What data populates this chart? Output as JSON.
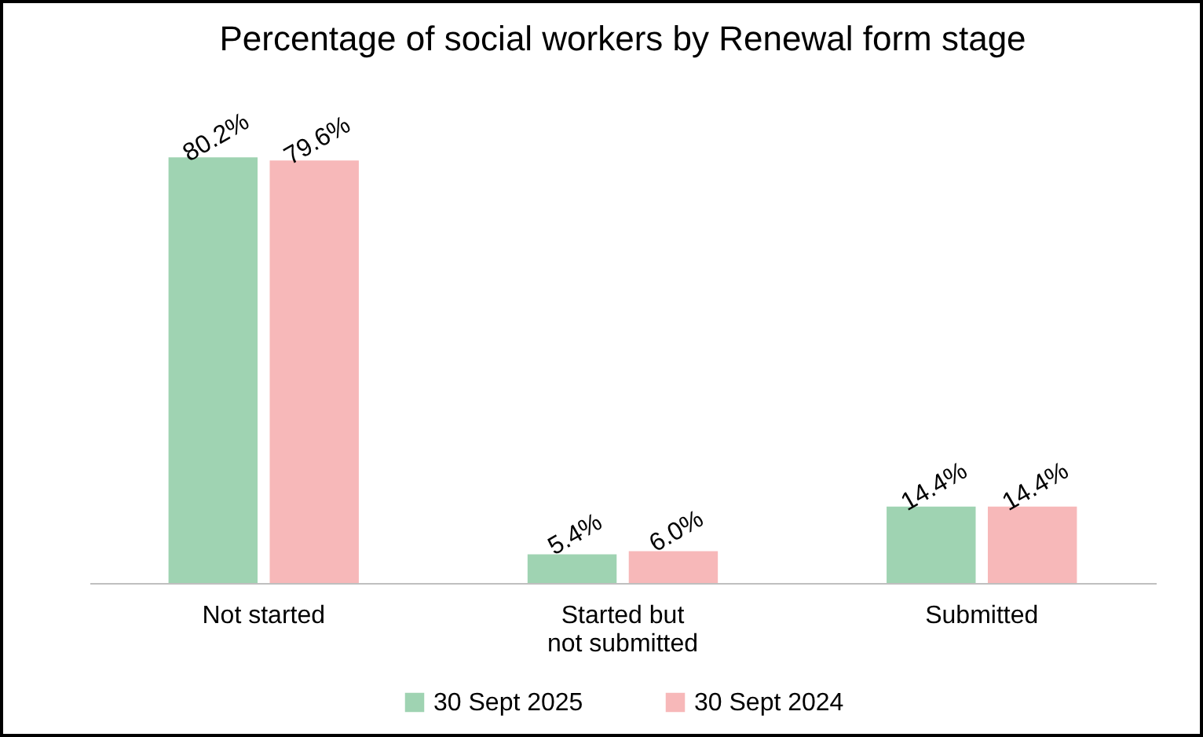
{
  "chart_data": {
    "type": "bar",
    "title": "Percentage of social workers by Renewal form stage",
    "categories": [
      "Not started",
      "Started but not submitted",
      "Submitted"
    ],
    "series": [
      {
        "name": "30 Sept 2025",
        "color": "#9fd3b2",
        "values": [
          80.2,
          5.4,
          14.4
        ],
        "value_labels": [
          "80.2%",
          "5.4%",
          "14.4%"
        ]
      },
      {
        "name": "30 Sept 2024",
        "color": "#f7b8b9",
        "values": [
          79.6,
          6.0,
          14.4
        ],
        "value_labels": [
          "79.6%",
          "6.0%",
          "14.4%"
        ]
      }
    ],
    "legend": "bottom"
  }
}
